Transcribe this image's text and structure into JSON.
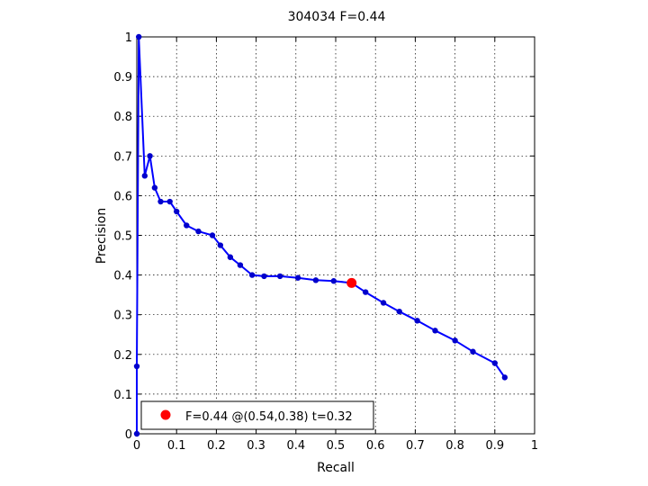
{
  "chart_data": {
    "type": "line",
    "title": "304034 F=0.44",
    "xlabel": "Recall",
    "ylabel": "Precision",
    "xlim": [
      0,
      1
    ],
    "ylim": [
      0,
      1
    ],
    "xticks": [
      "0",
      "0.1",
      "0.2",
      "0.3",
      "0.4",
      "0.5",
      "0.6",
      "0.7",
      "0.8",
      "0.9",
      "1"
    ],
    "yticks": [
      "0",
      "0.1",
      "0.2",
      "0.3",
      "0.4",
      "0.5",
      "0.6",
      "0.7",
      "0.8",
      "0.9",
      "1"
    ],
    "grid": true,
    "colors": {
      "curve": "#0000ff",
      "marker": "#0000cc",
      "optimum": "#ff0000"
    },
    "series": [
      {
        "x": [
          0.0,
          0.0,
          0.005,
          0.02,
          0.033,
          0.045,
          0.06,
          0.083,
          0.1,
          0.125,
          0.155,
          0.19,
          0.21,
          0.235,
          0.26,
          0.29,
          0.32,
          0.36,
          0.405,
          0.45,
          0.495,
          0.54,
          0.575,
          0.62,
          0.66,
          0.705,
          0.75,
          0.8,
          0.845,
          0.9,
          0.925
        ],
        "y": [
          0.0,
          0.17,
          1.0,
          0.65,
          0.7,
          0.62,
          0.585,
          0.585,
          0.56,
          0.525,
          0.51,
          0.5,
          0.475,
          0.445,
          0.425,
          0.4,
          0.397,
          0.397,
          0.393,
          0.387,
          0.385,
          0.38,
          0.357,
          0.33,
          0.308,
          0.285,
          0.26,
          0.235,
          0.207,
          0.178,
          0.142
        ]
      }
    ],
    "optimum": {
      "x": 0.54,
      "y": 0.38
    },
    "legend": {
      "label": "F=0.44 @(0.54,0.38) t=0.32",
      "position": "bottom-left"
    }
  }
}
